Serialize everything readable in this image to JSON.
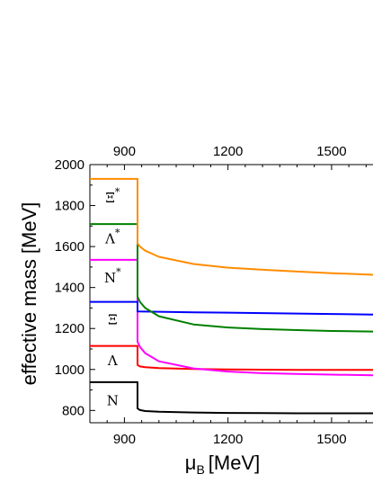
{
  "chart_data": {
    "type": "line",
    "xlabel": "μ",
    "xlabel_sub": "B",
    "xlabel_unit": "[MeV]",
    "ylabel": "effective mass [MeV]",
    "xlim": [
      800,
      1620
    ],
    "ylim": [
      740,
      2000
    ],
    "xticks": [
      900,
      1200,
      1500
    ],
    "yticks": [
      800,
      1000,
      1200,
      1400,
      1600,
      1800,
      2000
    ],
    "top_axis_ticks": [
      900,
      1200,
      1500
    ],
    "grid": false,
    "series": [
      {
        "name": "N",
        "color": "#000000",
        "x": [
          800,
          938,
          938,
          945,
          960,
          1000,
          1100,
          1200,
          1300,
          1400,
          1500,
          1620
        ],
        "y": [
          938,
          938,
          810,
          802,
          797,
          794,
          790,
          788,
          787,
          786,
          786,
          786
        ]
      },
      {
        "name": "Λ",
        "color": "#ff0000",
        "x": [
          800,
          938,
          938,
          945,
          960,
          1000,
          1100,
          1200,
          1300,
          1400,
          1500,
          1620
        ],
        "y": [
          1115,
          1115,
          1022,
          1015,
          1011,
          1007,
          1002,
          1000,
          999,
          998,
          998,
          998
        ]
      },
      {
        "name": "N*",
        "color": "#ff00ff",
        "x": [
          800,
          938,
          938,
          945,
          960,
          1000,
          1100,
          1200,
          1300,
          1400,
          1500,
          1620
        ],
        "y": [
          1535,
          1535,
          1135,
          1110,
          1080,
          1040,
          1005,
          990,
          982,
          978,
          975,
          972
        ]
      },
      {
        "name": "Ξ",
        "color": "#0000ff",
        "x": [
          800,
          938,
          938,
          1100,
          1300,
          1500,
          1620
        ],
        "y": [
          1330,
          1330,
          1283,
          1279,
          1275,
          1271,
          1268
        ]
      },
      {
        "name": "Λ*",
        "color": "#008000",
        "x": [
          800,
          938,
          938,
          945,
          960,
          1000,
          1100,
          1200,
          1300,
          1400,
          1500,
          1620
        ],
        "y": [
          1710,
          1710,
          1355,
          1330,
          1300,
          1260,
          1220,
          1205,
          1197,
          1192,
          1188,
          1185
        ]
      },
      {
        "name": "Ξ*",
        "color": "#ff8c00",
        "x": [
          800,
          938,
          938,
          945,
          960,
          1000,
          1100,
          1200,
          1300,
          1400,
          1500,
          1620
        ],
        "y": [
          1930,
          1930,
          1615,
          1600,
          1580,
          1550,
          1515,
          1497,
          1487,
          1478,
          1470,
          1462
        ]
      }
    ],
    "labels": [
      {
        "text": "Ξ",
        "sup": "*",
        "x": 866,
        "y": 1815
      },
      {
        "text": "Λ",
        "sup": "*",
        "x": 866,
        "y": 1615
      },
      {
        "text": "N",
        "sup": "*",
        "x": 866,
        "y": 1425
      },
      {
        "text": "Ξ",
        "sup": "",
        "x": 866,
        "y": 1220
      },
      {
        "text": "Λ",
        "sup": "",
        "x": 866,
        "y": 1020
      },
      {
        "text": "N",
        "sup": "",
        "x": 866,
        "y": 825
      }
    ]
  }
}
